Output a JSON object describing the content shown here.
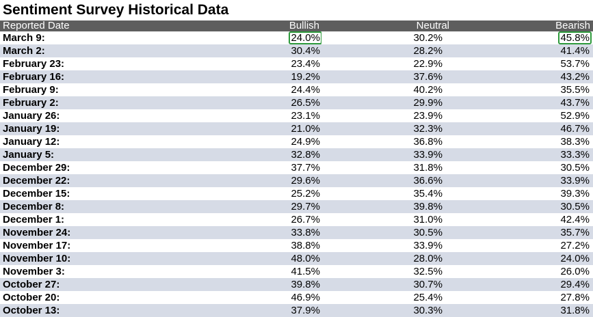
{
  "title": "Sentiment Survey Historical Data",
  "columns": {
    "date": "Reported Date",
    "bullish": "Bullish",
    "neutral": "Neutral",
    "bearish": "Bearish"
  },
  "highlight_color": "#2e9a3c",
  "rows": [
    {
      "date": "March 9:",
      "bullish": "24.0%",
      "neutral": "30.2%",
      "bearish": "45.8%",
      "highlight_bullish": true,
      "highlight_bearish": true
    },
    {
      "date": "March 2:",
      "bullish": "30.4%",
      "neutral": "28.2%",
      "bearish": "41.4%"
    },
    {
      "date": "February 23:",
      "bullish": "23.4%",
      "neutral": "22.9%",
      "bearish": "53.7%"
    },
    {
      "date": "February 16:",
      "bullish": "19.2%",
      "neutral": "37.6%",
      "bearish": "43.2%"
    },
    {
      "date": "February 9:",
      "bullish": "24.4%",
      "neutral": "40.2%",
      "bearish": "35.5%"
    },
    {
      "date": "February 2:",
      "bullish": "26.5%",
      "neutral": "29.9%",
      "bearish": "43.7%"
    },
    {
      "date": "January 26:",
      "bullish": "23.1%",
      "neutral": "23.9%",
      "bearish": "52.9%"
    },
    {
      "date": "January 19:",
      "bullish": "21.0%",
      "neutral": "32.3%",
      "bearish": "46.7%"
    },
    {
      "date": "January 12:",
      "bullish": "24.9%",
      "neutral": "36.8%",
      "bearish": "38.3%"
    },
    {
      "date": "January 5:",
      "bullish": "32.8%",
      "neutral": "33.9%",
      "bearish": "33.3%"
    },
    {
      "date": "December 29:",
      "bullish": "37.7%",
      "neutral": "31.8%",
      "bearish": "30.5%"
    },
    {
      "date": "December 22:",
      "bullish": "29.6%",
      "neutral": "36.6%",
      "bearish": "33.9%"
    },
    {
      "date": "December 15:",
      "bullish": "25.2%",
      "neutral": "35.4%",
      "bearish": "39.3%"
    },
    {
      "date": "December 8:",
      "bullish": "29.7%",
      "neutral": "39.8%",
      "bearish": "30.5%"
    },
    {
      "date": "December 1:",
      "bullish": "26.7%",
      "neutral": "31.0%",
      "bearish": "42.4%"
    },
    {
      "date": "November 24:",
      "bullish": "33.8%",
      "neutral": "30.5%",
      "bearish": "35.7%"
    },
    {
      "date": "November 17:",
      "bullish": "38.8%",
      "neutral": "33.9%",
      "bearish": "27.2%"
    },
    {
      "date": "November 10:",
      "bullish": "48.0%",
      "neutral": "28.0%",
      "bearish": "24.0%"
    },
    {
      "date": "November 3:",
      "bullish": "41.5%",
      "neutral": "32.5%",
      "bearish": "26.0%"
    },
    {
      "date": "October 27:",
      "bullish": "39.8%",
      "neutral": "30.7%",
      "bearish": "29.4%"
    },
    {
      "date": "October 20:",
      "bullish": "46.9%",
      "neutral": "25.4%",
      "bearish": "27.8%"
    },
    {
      "date": "October 13:",
      "bullish": "37.9%",
      "neutral": "30.3%",
      "bearish": "31.8%"
    }
  ]
}
